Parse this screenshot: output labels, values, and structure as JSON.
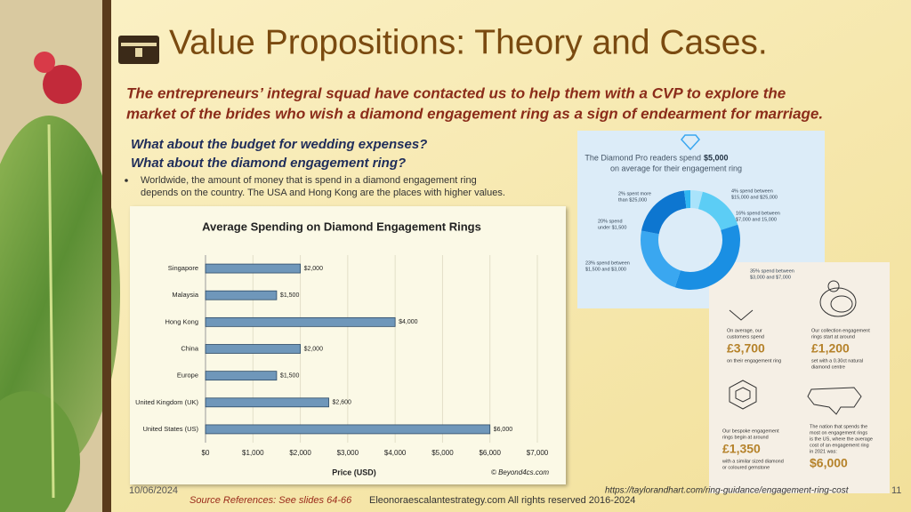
{
  "title": "Value Propositions: Theory and Cases.",
  "subtitle": [
    "The entrepreneurs’ integral squad have contacted us to help them with a CVP to explore the",
    "market of the brides who wish a diamond engagement ring as a sign of endearment for marriage."
  ],
  "questions": [
    "What about the budget for wedding expenses?",
    "What about the diamond engagement ring?"
  ],
  "bullet": [
    "Worldwide, the amount of money that is spend in a diamond engagement ring",
    "depends on the country. The USA and Hong Kong are the places with higher values."
  ],
  "chart_data": [
    {
      "type": "bar",
      "orientation": "horizontal",
      "title": "Average Spending on Diamond Engagement Rings",
      "categories": [
        "Singapore",
        "Malaysia",
        "Hong Kong",
        "China",
        "Europe",
        "United Kingdom (UK)",
        "United States (US)"
      ],
      "values": [
        2000,
        1500,
        4000,
        2000,
        1500,
        2600,
        6000
      ],
      "value_labels": [
        "$2,000",
        "$1,500",
        "$4,000",
        "$2,000",
        "$1,500",
        "$2,600",
        "$6,000"
      ],
      "color": "#6f97ba",
      "xlim": [
        0,
        7000
      ],
      "xticks": [
        {
          "value": 0,
          "label": "$0"
        },
        {
          "value": 1000,
          "label": "$1,000"
        },
        {
          "value": 2000,
          "label": "$2,000"
        },
        {
          "value": 3000,
          "label": "$3,000"
        },
        {
          "value": 4000,
          "label": "$4,000"
        },
        {
          "value": 5000,
          "label": "$5,000"
        },
        {
          "value": 6000,
          "label": "$6,000"
        },
        {
          "value": 7000,
          "label": "$7,000"
        }
      ],
      "xlabel": "Price (USD)",
      "grid": true,
      "credit": "© Beyond4cs.com"
    },
    {
      "type": "pie",
      "donut": true,
      "title": "The Diamond Pro readers spend",
      "highlight": "$5,000",
      "subtitle": "on average for their engagement ring",
      "categories": [
        [
          "4% spend between",
          "$15,000 and $25,000"
        ],
        [
          "16% spend between",
          "$7,000 and 15,000"
        ],
        [
          "35% spend between",
          "$3,000 and $7,000"
        ],
        [
          "23% spend between",
          "$1,500 and $3,000"
        ],
        [
          "20% spend",
          "under $1,500"
        ],
        [
          "2% spent more",
          "than $25,000"
        ]
      ],
      "values": [
        4,
        16,
        35,
        23,
        20,
        2
      ],
      "colors": [
        "#a9e3fb",
        "#5ccdf5",
        "#1a8fe3",
        "#3aa7f0",
        "#0d76d0",
        "#2fb6f2"
      ]
    }
  ],
  "infographic": [
    {
      "top": [
        "On average, our",
        "customers spend"
      ],
      "amount": "£3,700",
      "bottom": [
        "on their engagement ring"
      ]
    },
    {
      "top": [
        "Our collection engagement",
        "rings start at around"
      ],
      "amount": "£1,200",
      "bottom": [
        "set with a 0.30ct natural",
        "diamond centre"
      ]
    },
    {
      "top": [
        "Our bespoke engagement",
        "rings begin at around"
      ],
      "amount": "£1,350",
      "bottom": [
        "with a similar sized diamond",
        "or coloured gemstone"
      ]
    },
    {
      "top": [
        "The nation that spends the",
        "most on engagement rings",
        "is the US, where the average",
        "cost of an engagement ring",
        "in 2021 was:"
      ],
      "amount": "$6,000",
      "bottom": []
    }
  ],
  "footer": {
    "date": "10/06/2024",
    "source": "Source References: See slides 64-66",
    "site": "Eleonoraescalantestrategy.com  All rights reserved 2016-2024",
    "url": "https://taylorandhart.com/ring-guidance/engagement-ring-cost",
    "page": "11"
  }
}
